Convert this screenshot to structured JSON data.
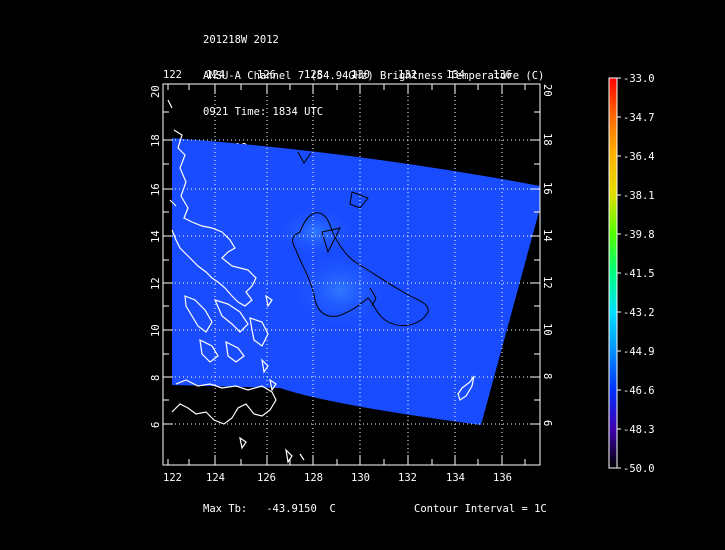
{
  "header": {
    "line1": "201218W 2012",
    "line2": "AMSU-A Channel 7 (54.94GHz) Brightness Temperature (C)",
    "line3": "0921 Time: 1834 UTC",
    "line4": "NOAA-18"
  },
  "map": {
    "lon_ticks": [
      "122",
      "124",
      "126",
      "128",
      "130",
      "132",
      "134",
      "136"
    ],
    "lat_ticks": [
      "6",
      "8",
      "10",
      "12",
      "14",
      "16",
      "18",
      "20"
    ],
    "swath_color": "#1a4cff",
    "warm_core_color": "#2a6dff",
    "land_color": "#ffffff"
  },
  "colorbar": {
    "labels": [
      "-33.0",
      "-34.7",
      "-36.4",
      "-38.1",
      "-39.8",
      "-41.5",
      "-43.2",
      "-44.9",
      "-46.6",
      "-48.3",
      "-50.0"
    ],
    "colors": [
      "#ff0000",
      "#ff5a00",
      "#ffa500",
      "#e8e800",
      "#7fff00",
      "#00ff66",
      "#00e0ff",
      "#0096ff",
      "#0033ff",
      "#4000c0",
      "#000000"
    ]
  },
  "footer": {
    "max_tb_label": "Max Tb:",
    "max_tb_value": "-43.9150",
    "max_tb_unit": "C",
    "contour": "Contour Interval = 1C"
  }
}
